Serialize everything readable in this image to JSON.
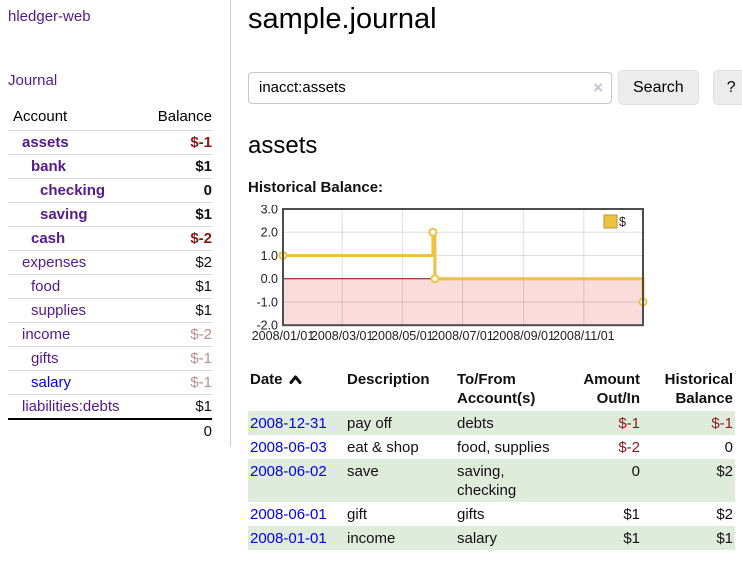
{
  "app": {
    "brand": "hledger-web"
  },
  "sidebar": {
    "nav": {
      "journal_label": "Journal"
    },
    "accounts_table": {
      "headers": {
        "account": "Account",
        "balance": "Balance"
      },
      "rows": [
        {
          "name": "assets",
          "depth": 0,
          "bold": true,
          "balance": "$-1",
          "balance_style": "negative"
        },
        {
          "name": "bank",
          "depth": 1,
          "bold": true,
          "balance": "$1",
          "balance_style": "normal"
        },
        {
          "name": "checking",
          "depth": 2,
          "bold": true,
          "balance": "0",
          "balance_style": "normal"
        },
        {
          "name": "saving",
          "depth": 2,
          "bold": true,
          "balance": "$1",
          "balance_style": "normal"
        },
        {
          "name": "cash",
          "depth": 1,
          "bold": true,
          "balance": "$-2",
          "balance_style": "negative"
        },
        {
          "name": "expenses",
          "depth": 0,
          "bold": false,
          "balance": "$2",
          "balance_style": "normal"
        },
        {
          "name": "food",
          "depth": 1,
          "bold": false,
          "balance": "$1",
          "balance_style": "normal"
        },
        {
          "name": "supplies",
          "depth": 1,
          "bold": false,
          "balance": "$1",
          "balance_style": "normal"
        },
        {
          "name": "income",
          "depth": 0,
          "bold": false,
          "balance": "$-2",
          "balance_style": "negative-muted"
        },
        {
          "name": "gifts",
          "depth": 1,
          "bold": false,
          "balance": "$-1",
          "balance_style": "negative-muted"
        },
        {
          "name": "salary",
          "depth": 1,
          "bold": false,
          "balance": "$-1",
          "balance_style": "negative-muted",
          "link_color": "blue"
        },
        {
          "name": "liabilities:debts",
          "depth": 0,
          "bold": false,
          "balance": "$1",
          "balance_style": "normal"
        }
      ],
      "total": "0"
    }
  },
  "header": {
    "title": "sample.journal"
  },
  "search": {
    "value": "inacct:assets",
    "clear_icon": "×",
    "search_label": "Search",
    "help_label": "?"
  },
  "account_page": {
    "heading": "assets",
    "section_title": "Historical Balance:"
  },
  "chart_data": {
    "type": "line",
    "step": true,
    "title": "Historical Balance:",
    "x_domain": [
      "2008-01-01",
      "2008-12-31"
    ],
    "ylim": [
      -2,
      3
    ],
    "y_ticks": [
      3.0,
      2.0,
      1.0,
      0.0,
      -1.0,
      -2.0
    ],
    "x_ticks": [
      "2008/01/01",
      "2008/03/01",
      "2008/05/01",
      "2008/07/01",
      "2008/09/01",
      "2008/11/01"
    ],
    "grid": true,
    "legend": {
      "label": "$",
      "position": "top-right"
    },
    "series": [
      {
        "name": "$",
        "color": "#edc240",
        "points": [
          [
            "2008-01-01",
            1
          ],
          [
            "2008-06-01",
            2
          ],
          [
            "2008-06-03",
            0
          ],
          [
            "2008-12-31",
            -1
          ]
        ]
      }
    ],
    "negative_region_fill": "#fbdbdb",
    "zero_line_color": "#8b0000",
    "border_color": "#4d4d4d",
    "grid_color": "rgba(0,0,0,0.13)"
  },
  "register_table": {
    "columns": [
      {
        "label": "Date",
        "align": "left",
        "sorted": "asc"
      },
      {
        "label": "Description",
        "align": "left"
      },
      {
        "label": "To/From Account(s)",
        "align": "left"
      },
      {
        "label": "Amount Out/In",
        "align": "right"
      },
      {
        "label": "Historical Balance",
        "align": "right"
      }
    ],
    "rows": [
      {
        "date": "2008-12-31",
        "description": "pay off",
        "accounts": "debts",
        "amount": "$-1",
        "balance": "$-1"
      },
      {
        "date": "2008-06-03",
        "description": "eat & shop",
        "accounts": "food, supplies",
        "amount": "$-2",
        "balance": "0"
      },
      {
        "date": "2008-06-02",
        "description": "save",
        "accounts": "saving, checking",
        "amount": "0",
        "balance": "$2"
      },
      {
        "date": "2008-06-01",
        "description": "gift",
        "accounts": "gifts",
        "amount": "$1",
        "balance": "$2"
      },
      {
        "date": "2008-01-01",
        "description": "income",
        "accounts": "salary",
        "amount": "$1",
        "balance": "$1"
      }
    ]
  },
  "colors": {
    "link_purple": "#551a8b",
    "link_blue": "#0000ee",
    "negative_strong": "#8f1414",
    "negative_muted": "#c08e8e",
    "row_stripe_green": "#dfecdb",
    "chart_line": "#edc240"
  }
}
